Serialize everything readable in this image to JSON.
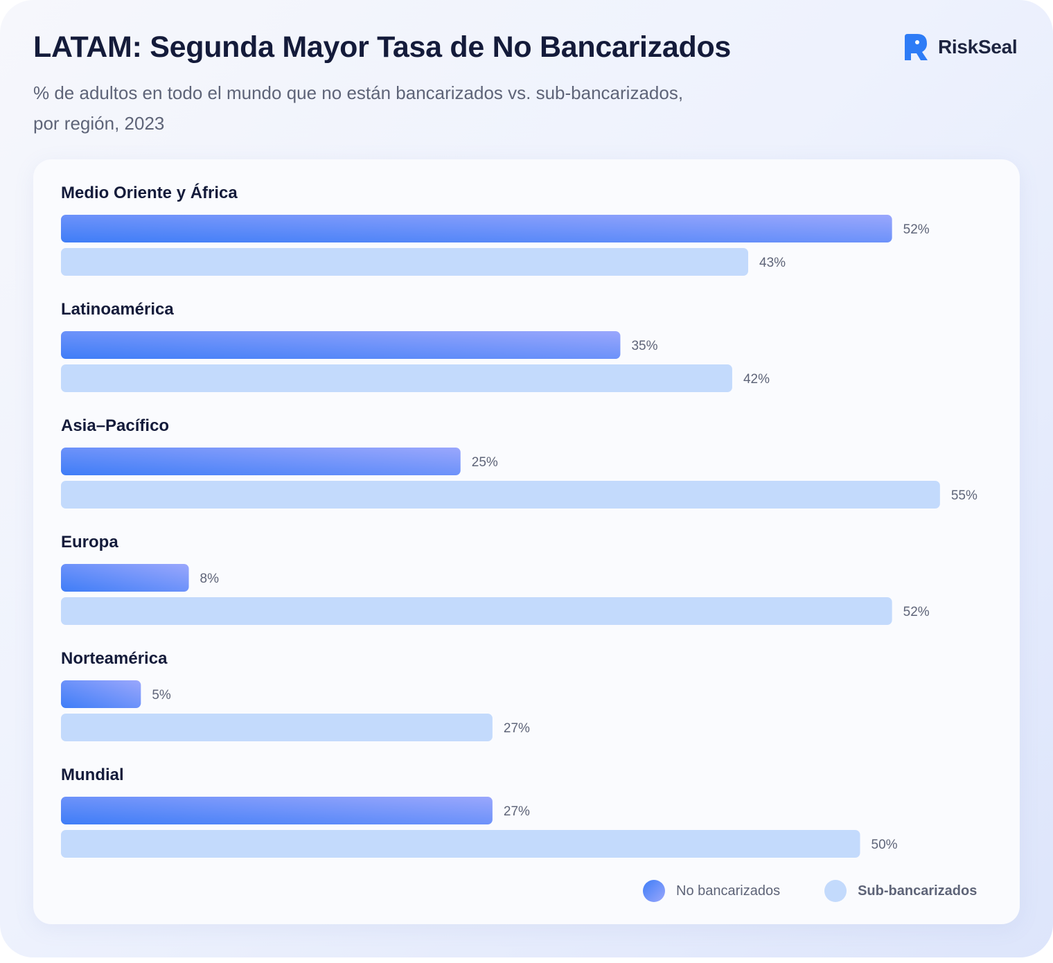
{
  "header": {
    "title": "LATAM: Segunda Mayor Tasa de No Bancarizados",
    "subtitle_line1": "% de adultos en todo el mundo que no están bancarizados vs. sub-bancarizados,",
    "subtitle_line2": "por región, 2023"
  },
  "brand": {
    "name": "RiskSeal",
    "logo_icon": "riskseal-logo-icon",
    "color": "#2e7cf6"
  },
  "colors": {
    "unbanked_start": "#3f7df7",
    "unbanked_end": "#9aa7fc",
    "underbanked": "#c3dafc"
  },
  "chart_data": {
    "type": "bar",
    "orientation": "horizontal",
    "categories": [
      "Medio Oriente y África",
      "Latinoamérica",
      "Asia–Pacífico",
      "Europa",
      "Norteamérica",
      " Mundial"
    ],
    "series": [
      {
        "name": "No bancarizados",
        "values": [
          52,
          35,
          25,
          8,
          5,
          27
        ],
        "labels": [
          "52%",
          "35%",
          "25%",
          "8%",
          "5%",
          "27%"
        ]
      },
      {
        "name": "Sub-bancarizados",
        "values": [
          43,
          42,
          55,
          52,
          27,
          50
        ],
        "labels": [
          "43%",
          "42%",
          "55%",
          "52%",
          "27%",
          "50%"
        ]
      }
    ],
    "unit": "%",
    "grid": false,
    "legend_position": "bottom-right"
  }
}
